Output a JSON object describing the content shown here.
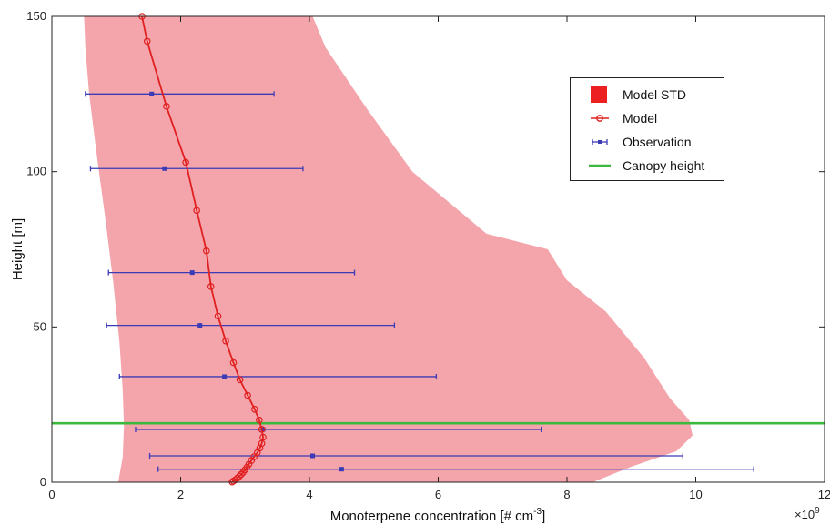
{
  "chart_data": {
    "type": "line",
    "xlabel": "Monoterpene concentration [# cm",
    "xlabel_sup": "-3",
    "xlabel_end": "]",
    "ylabel": "Height [m]",
    "x_multiplier": "×10",
    "x_multiplier_exp": "9",
    "xlim": [
      0,
      12
    ],
    "ylim": [
      0,
      150
    ],
    "xticks": [
      0,
      2,
      4,
      6,
      8,
      10,
      12
    ],
    "yticks": [
      0,
      50,
      100,
      150
    ],
    "grid": false,
    "legend_position": "top-right",
    "legend": [
      {
        "label": "Model STD",
        "symbol": "patch"
      },
      {
        "label": "Model",
        "symbol": "line-circle"
      },
      {
        "label": "Observation",
        "symbol": "errorbar"
      },
      {
        "label": "Canopy height",
        "symbol": "line"
      }
    ],
    "model": {
      "name": "Model",
      "color": "#e02020",
      "points": [
        [
          1.4,
          150
        ],
        [
          1.48,
          142
        ],
        [
          1.78,
          121
        ],
        [
          2.08,
          103
        ],
        [
          2.25,
          87.5
        ],
        [
          2.4,
          74.5
        ],
        [
          2.47,
          63
        ],
        [
          2.58,
          53.5
        ],
        [
          2.7,
          45.5
        ],
        [
          2.82,
          38.5
        ],
        [
          2.92,
          33
        ],
        [
          3.04,
          28
        ],
        [
          3.15,
          23.5
        ],
        [
          3.22,
          20
        ],
        [
          3.26,
          17
        ],
        [
          3.28,
          14.5
        ],
        [
          3.26,
          12.5
        ],
        [
          3.23,
          11
        ],
        [
          3.19,
          9.5
        ],
        [
          3.14,
          8.2
        ],
        [
          3.1,
          7
        ],
        [
          3.06,
          5.8
        ],
        [
          3.03,
          4.8
        ],
        [
          3.0,
          4
        ],
        [
          2.97,
          3.2
        ],
        [
          2.94,
          2.5
        ],
        [
          2.91,
          1.9
        ],
        [
          2.88,
          1.3
        ],
        [
          2.85,
          0.8
        ],
        [
          2.82,
          0.4
        ],
        [
          2.8,
          0.1
        ]
      ]
    },
    "model_std": {
      "name": "Model STD",
      "color": "#f4a4ab",
      "left": [
        [
          1.03,
          0
        ],
        [
          1.1,
          8
        ],
        [
          1.12,
          18
        ],
        [
          1.1,
          30
        ],
        [
          1.05,
          45
        ],
        [
          0.95,
          65
        ],
        [
          0.83,
          85
        ],
        [
          0.7,
          105
        ],
        [
          0.58,
          125
        ],
        [
          0.52,
          140
        ],
        [
          0.5,
          150
        ]
      ],
      "right": [
        [
          4.05,
          150
        ],
        [
          4.25,
          140
        ],
        [
          4.9,
          120
        ],
        [
          5.6,
          100
        ],
        [
          6.75,
          80
        ],
        [
          7.7,
          75
        ],
        [
          8.0,
          65
        ],
        [
          8.6,
          55
        ],
        [
          9.2,
          40
        ],
        [
          9.6,
          27
        ],
        [
          9.9,
          20
        ],
        [
          9.95,
          15
        ],
        [
          9.7,
          10
        ],
        [
          9.0,
          5
        ],
        [
          8.4,
          0
        ]
      ]
    },
    "observation": {
      "name": "Observation",
      "color": "#3b3bb5",
      "points": [
        {
          "x": 1.55,
          "y": 125,
          "xmin": 0.52,
          "xmax": 3.45
        },
        {
          "x": 1.75,
          "y": 101,
          "xmin": 0.6,
          "xmax": 3.9
        },
        {
          "x": 2.18,
          "y": 67.5,
          "xmin": 0.88,
          "xmax": 4.7
        },
        {
          "x": 2.3,
          "y": 50.5,
          "xmin": 0.85,
          "xmax": 5.32
        },
        {
          "x": 2.68,
          "y": 34,
          "xmin": 1.05,
          "xmax": 5.97
        },
        {
          "x": 3.28,
          "y": 17,
          "xmin": 1.3,
          "xmax": 7.6
        },
        {
          "x": 4.05,
          "y": 8.5,
          "xmin": 1.52,
          "xmax": 9.8
        },
        {
          "x": 4.5,
          "y": 4.2,
          "xmin": 1.65,
          "xmax": 10.9
        }
      ]
    },
    "canopy_height": {
      "name": "Canopy height",
      "color": "#3cb83c",
      "y": 19
    }
  }
}
